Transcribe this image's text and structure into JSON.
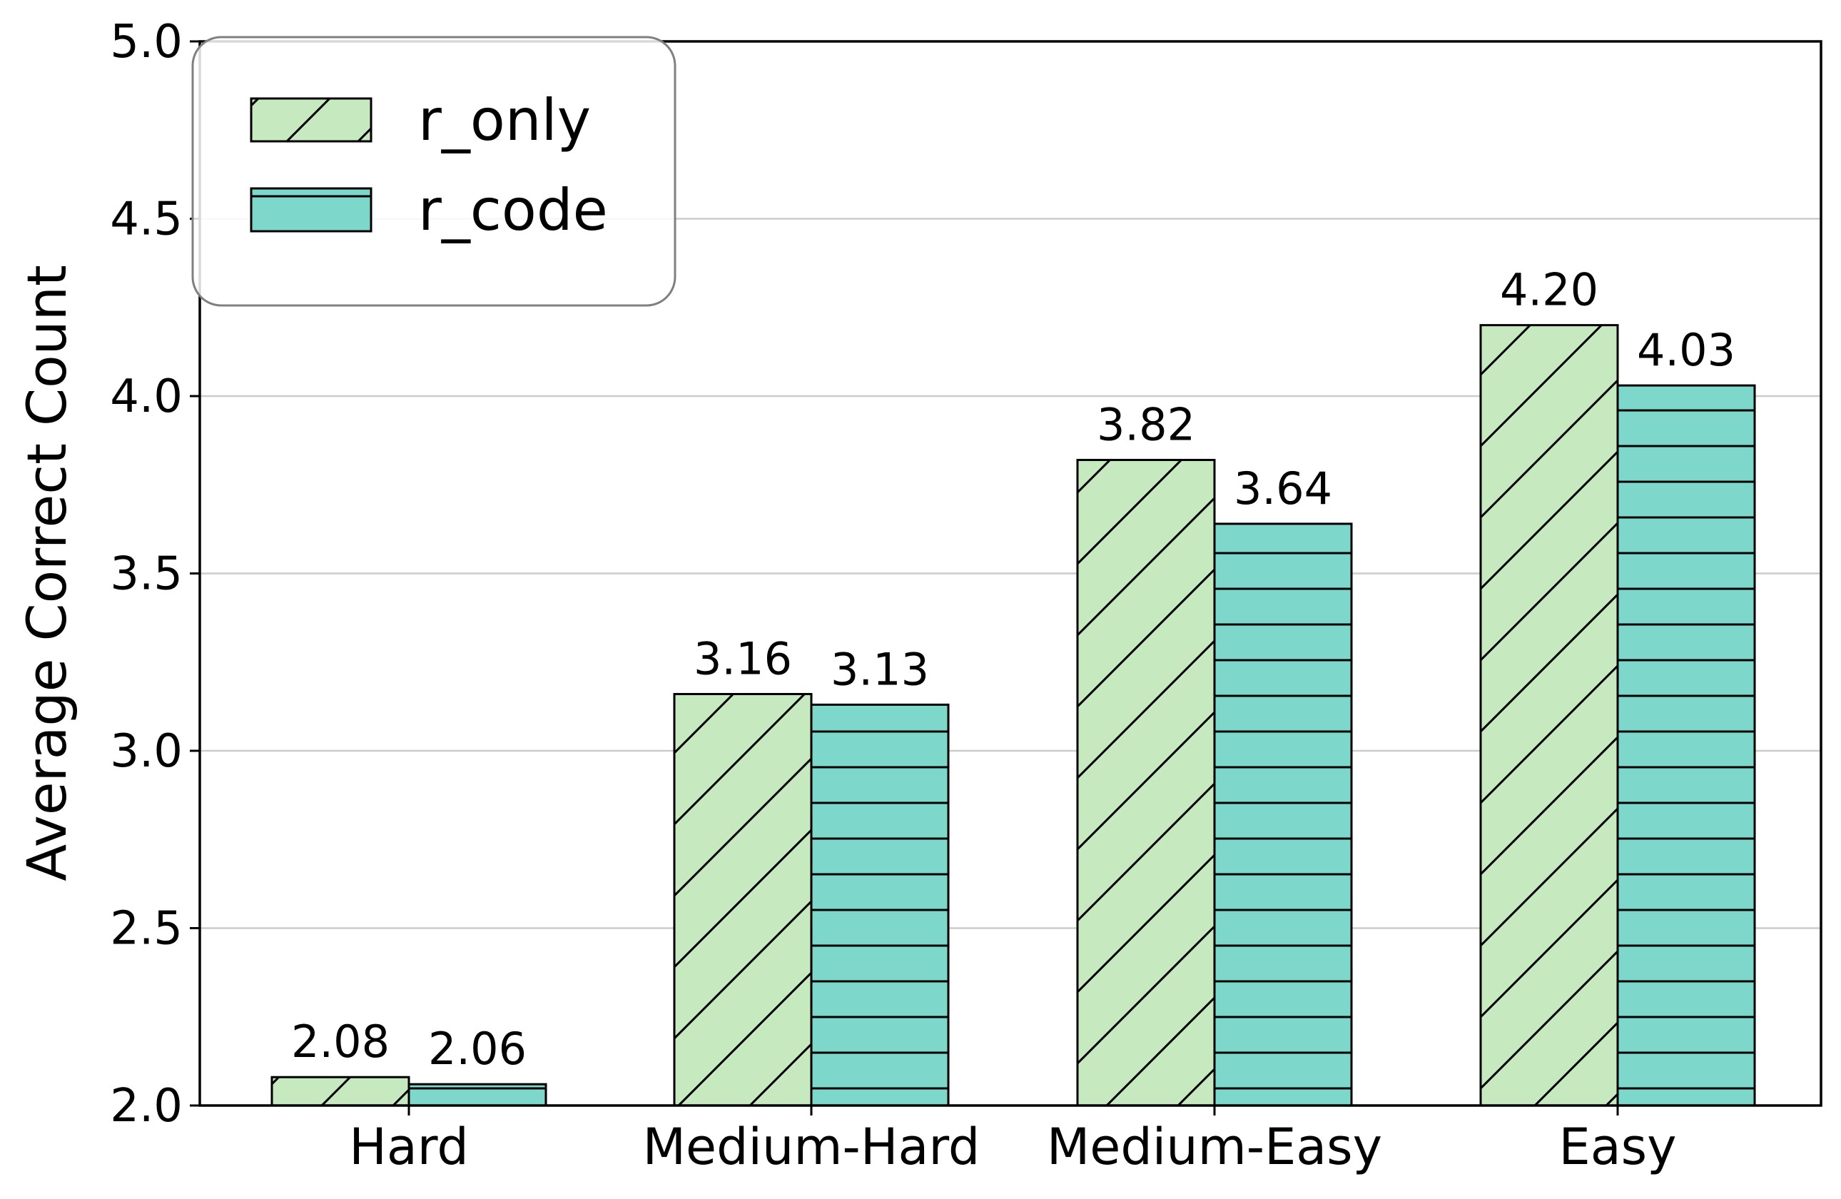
{
  "chart_data": {
    "type": "bar",
    "title": "",
    "xlabel": "",
    "ylabel": "Average Correct Count",
    "categories": [
      "Hard",
      "Medium-Hard",
      "Medium-Easy",
      "Easy"
    ],
    "series": [
      {
        "name": "r_only",
        "values": [
          2.08,
          3.16,
          3.82,
          4.2
        ],
        "labels": [
          "2.08",
          "3.16",
          "3.82",
          "4.20"
        ],
        "color": "#c7e9c0",
        "hatch": "diagonal"
      },
      {
        "name": "r_code",
        "values": [
          2.06,
          3.13,
          3.64,
          4.03
        ],
        "labels": [
          "2.06",
          "3.13",
          "3.64",
          "4.03"
        ],
        "color": "#7dd8cb",
        "hatch": "horizontal"
      }
    ],
    "ylim": [
      2.0,
      5.0
    ],
    "yticks": [
      "2.0",
      "2.5",
      "3.0",
      "3.5",
      "4.0",
      "4.5",
      "5.0"
    ],
    "grid": "horizontal",
    "legend_position": "top-left"
  }
}
